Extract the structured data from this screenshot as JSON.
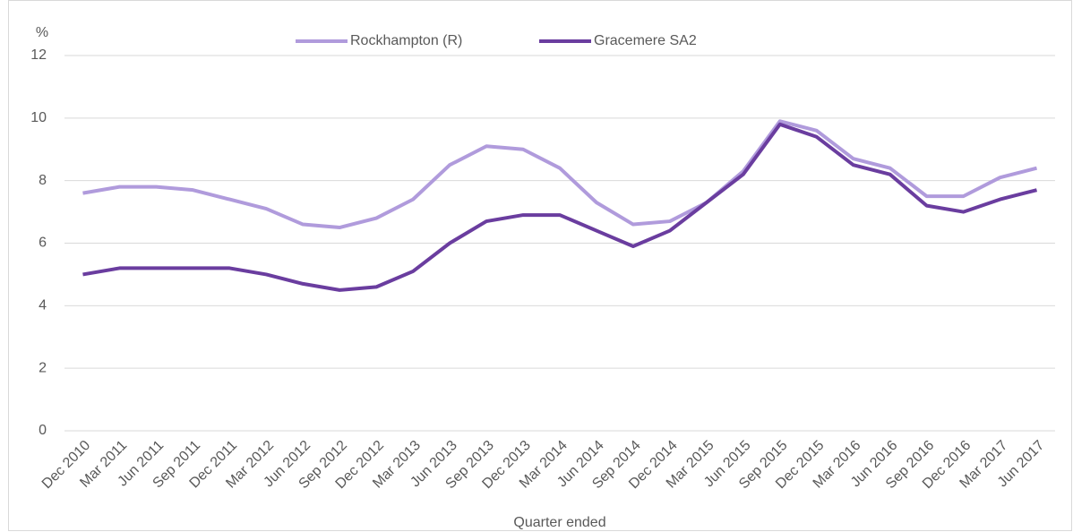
{
  "chart_data": {
    "type": "line",
    "y_label": "%",
    "x_label": "Quarter ended",
    "categories": [
      "Dec 2010",
      "Mar 2011",
      "Jun 2011",
      "Sep 2011",
      "Dec 2011",
      "Mar 2012",
      "Jun 2012",
      "Sep 2012",
      "Dec 2012",
      "Mar 2013",
      "Jun 2013",
      "Sep 2013",
      "Dec 2013",
      "Mar 2014",
      "Jun 2014",
      "Sep 2014",
      "Dec 2014",
      "Mar 2015",
      "Jun 2015",
      "Sep 2015",
      "Dec 2015",
      "Mar 2016",
      "Jun 2016",
      "Sep 2016",
      "Dec 2016",
      "Mar 2017",
      "Jun 2017"
    ],
    "series": [
      {
        "name": "Rockhampton (R)",
        "color": "#b09bdc",
        "values": [
          7.6,
          7.8,
          7.8,
          7.7,
          7.4,
          7.1,
          6.6,
          6.5,
          6.8,
          7.4,
          8.5,
          9.1,
          9.0,
          8.4,
          7.3,
          6.6,
          6.7,
          7.3,
          8.3,
          9.9,
          9.6,
          8.7,
          8.4,
          7.5,
          7.5,
          8.1,
          8.4
        ]
      },
      {
        "name": "Gracemere SA2",
        "color": "#6a3d9f",
        "values": [
          5.0,
          5.2,
          5.2,
          5.2,
          5.2,
          5.0,
          4.7,
          4.5,
          4.6,
          5.1,
          6.0,
          6.7,
          6.9,
          6.9,
          6.4,
          5.9,
          6.4,
          7.3,
          8.2,
          9.8,
          9.4,
          8.5,
          8.2,
          7.2,
          7.0,
          7.4,
          7.7
        ]
      }
    ],
    "ylim": [
      0,
      12
    ],
    "yticks": [
      0,
      2,
      4,
      6,
      8,
      10,
      12
    ],
    "grid": true,
    "legend": "top"
  }
}
